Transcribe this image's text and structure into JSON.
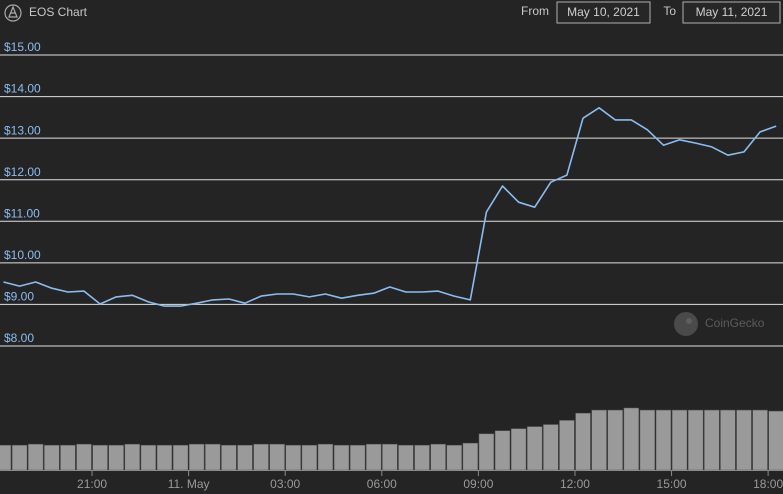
{
  "header": {
    "title": "EOS Chart",
    "from_label": "From",
    "from_date": "May 10, 2021",
    "to_label": "To",
    "to_date": "May 11, 2021"
  },
  "chart_data": {
    "type": "line",
    "watermark": "CoinGecko",
    "x": [
      18.25,
      18.75,
      19.25,
      19.75,
      20.25,
      20.75,
      21.25,
      21.75,
      22.25,
      22.75,
      23.25,
      23.75,
      24.25,
      24.75,
      25.25,
      25.75,
      26.25,
      26.75,
      27.25,
      27.75,
      28.25,
      28.75,
      29.25,
      29.75,
      30.25,
      30.75,
      31.25,
      31.75,
      32.25,
      32.75,
      33.25,
      33.75,
      34.25,
      34.75,
      35.25,
      35.75,
      36.25,
      36.75,
      37.25,
      37.75,
      38.25,
      38.75,
      39.25,
      39.75,
      40.25,
      40.75,
      41.25,
      41.75,
      42.25
    ],
    "series": [
      {
        "color": "#8bbcf0",
        "values": [
          9.54,
          9.44,
          9.54,
          9.39,
          9.3,
          9.32,
          9.01,
          9.18,
          9.22,
          9.06,
          8.96,
          8.96,
          9.03,
          9.11,
          9.13,
          9.03,
          9.2,
          9.25,
          9.25,
          9.18,
          9.25,
          9.15,
          9.22,
          9.27,
          9.42,
          9.3,
          9.3,
          9.32,
          9.2,
          9.11,
          11.22,
          11.85,
          11.46,
          11.34,
          11.94,
          12.11,
          13.48,
          13.73,
          13.44,
          13.44,
          13.2,
          12.83,
          12.96,
          12.88,
          12.79,
          12.59,
          12.67,
          13.15,
          13.29
        ]
      },
      {
        "type": "bar",
        "color": "#9a9a9a",
        "values": [
          24,
          24,
          25,
          24,
          24,
          25,
          24,
          24,
          25,
          24,
          24,
          24,
          25,
          25,
          24,
          24,
          25,
          25,
          24,
          24,
          25,
          24,
          24,
          25,
          25,
          24,
          24,
          25,
          24,
          26,
          35,
          38,
          40,
          42,
          44,
          48,
          55,
          58,
          58,
          60,
          58,
          58,
          58,
          58,
          58,
          58,
          58,
          58,
          57
        ]
      }
    ],
    "xlim": [
      18.25,
      42.4
    ],
    "ylim": [
      8,
      15
    ],
    "xticks": [
      {
        "value": 21,
        "label": "21:00"
      },
      {
        "value": 24,
        "label": "11. May"
      },
      {
        "value": 27,
        "label": "03:00"
      },
      {
        "value": 30,
        "label": "06:00"
      },
      {
        "value": 33,
        "label": "09:00"
      },
      {
        "value": 36,
        "label": "12:00"
      },
      {
        "value": 39,
        "label": "15:00"
      },
      {
        "value": 42,
        "label": "18:00"
      }
    ],
    "yticks": [
      {
        "value": 8,
        "label": "$8.00"
      },
      {
        "value": 9,
        "label": "$9.00"
      },
      {
        "value": 10,
        "label": "$10.00"
      },
      {
        "value": 11,
        "label": "$11.00"
      },
      {
        "value": 12,
        "label": "$12.00"
      },
      {
        "value": 13,
        "label": "$13.00"
      },
      {
        "value": 14,
        "label": "$14.00"
      },
      {
        "value": 15,
        "label": "$15.00"
      }
    ],
    "grid": true
  }
}
